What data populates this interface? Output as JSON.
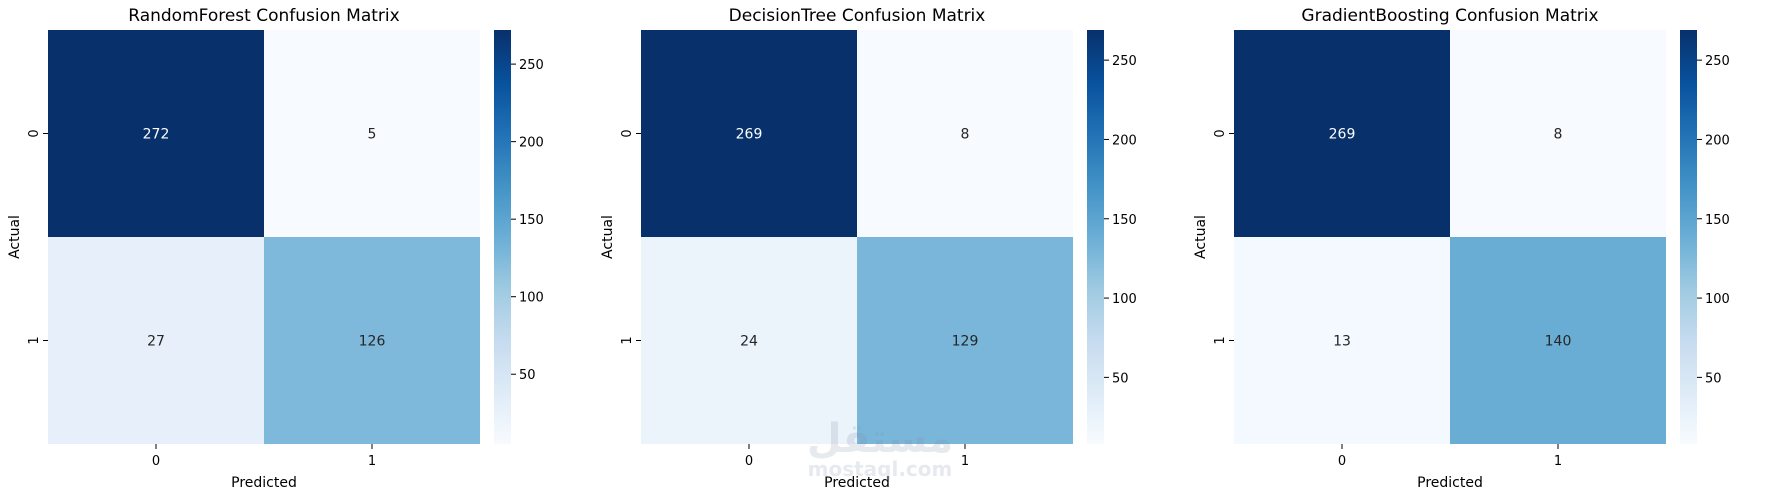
{
  "figure": {
    "watermark": "مستقل",
    "watermark_sub": "mostaql.com"
  },
  "colormap": {
    "name": "Blues",
    "stops": [
      [
        0.0,
        "#f7fbff"
      ],
      [
        0.125,
        "#deebf7"
      ],
      [
        0.25,
        "#c6dbef"
      ],
      [
        0.375,
        "#9ecae1"
      ],
      [
        0.5,
        "#6baed6"
      ],
      [
        0.625,
        "#4292c6"
      ],
      [
        0.75,
        "#2171b5"
      ],
      [
        0.875,
        "#08519c"
      ],
      [
        1.0,
        "#08306b"
      ]
    ]
  },
  "chart_data": [
    {
      "type": "heatmap",
      "title": "RandomForest Confusion Matrix",
      "xlabel": "Predicted",
      "ylabel": "Actual",
      "x_categories": [
        "0",
        "1"
      ],
      "y_categories": [
        "0",
        "1"
      ],
      "values": [
        [
          272,
          5
        ],
        [
          27,
          126
        ]
      ],
      "colorbar": {
        "range": [
          5,
          272
        ],
        "ticks": [
          50,
          100,
          150,
          200,
          250
        ]
      }
    },
    {
      "type": "heatmap",
      "title": "DecisionTree Confusion Matrix",
      "xlabel": "Predicted",
      "ylabel": "Actual",
      "x_categories": [
        "0",
        "1"
      ],
      "y_categories": [
        "0",
        "1"
      ],
      "values": [
        [
          269,
          8
        ],
        [
          24,
          129
        ]
      ],
      "colorbar": {
        "range": [
          8,
          269
        ],
        "ticks": [
          50,
          100,
          150,
          200,
          250
        ]
      }
    },
    {
      "type": "heatmap",
      "title": "GradientBoosting Confusion Matrix",
      "xlabel": "Predicted",
      "ylabel": "Actual",
      "x_categories": [
        "0",
        "1"
      ],
      "y_categories": [
        "0",
        "1"
      ],
      "values": [
        [
          269,
          8
        ],
        [
          13,
          140
        ]
      ],
      "colorbar": {
        "range": [
          8,
          269
        ],
        "ticks": [
          50,
          100,
          150,
          200,
          250
        ]
      }
    }
  ]
}
